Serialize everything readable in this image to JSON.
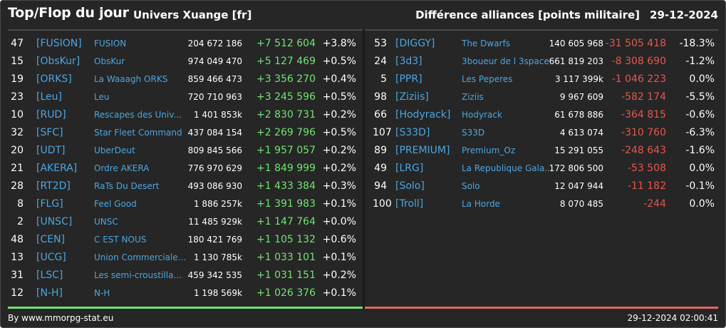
{
  "header": {
    "title": "Top/Flop du jour",
    "univers": "Univers Xuange [fr]",
    "subtitle": "Différence alliances [points militaire]",
    "date": "29-12-2024"
  },
  "colors": {
    "positive": "#72e472",
    "negative": "#e4574c",
    "link": "#4ca6e0",
    "background": "#262626"
  },
  "top": [
    {
      "rank": "47",
      "tag": "[FUSION]",
      "name": "FUSION",
      "points": "204 672 186",
      "diff": "+7 512 604",
      "pct": "+3.8%"
    },
    {
      "rank": "15",
      "tag": "[ObsKur]",
      "name": "ObsKur",
      "points": "974 049 470",
      "diff": "+5 127 469",
      "pct": "+0.5%"
    },
    {
      "rank": "19",
      "tag": "[ORKS]",
      "name": "La Waaagh ORKS",
      "points": "859 466 473",
      "diff": "+3 356 270",
      "pct": "+0.4%"
    },
    {
      "rank": "23",
      "tag": "[Leu]",
      "name": "Leu",
      "points": "720 710 963",
      "diff": "+3 245 596",
      "pct": "+0.5%"
    },
    {
      "rank": "10",
      "tag": "[RUD]",
      "name": "Rescapes des Univ...",
      "points": "1 401 853k",
      "diff": "+2 830 731",
      "pct": "+0.2%"
    },
    {
      "rank": "32",
      "tag": "[SFC]",
      "name": "Star Fleet Command",
      "points": "437 084 154",
      "diff": "+2 269 796",
      "pct": "+0.5%"
    },
    {
      "rank": "20",
      "tag": "[UDT]",
      "name": "UberDeut",
      "points": "809 845 566",
      "diff": "+1 957 057",
      "pct": "+0.2%"
    },
    {
      "rank": "21",
      "tag": "[AKERA]",
      "name": "Ordre AKERA",
      "points": "776 970 629",
      "diff": "+1 849 999",
      "pct": "+0.2%"
    },
    {
      "rank": "28",
      "tag": "[RT2D]",
      "name": "RaTs Du Desert",
      "points": "493 086 930",
      "diff": "+1 433 384",
      "pct": "+0.3%"
    },
    {
      "rank": "8",
      "tag": "[FLG]",
      "name": "Feel Good",
      "points": "1 886 257k",
      "diff": "+1 391 983",
      "pct": "+0.1%"
    },
    {
      "rank": "2",
      "tag": "[UNSC]",
      "name": "UNSC",
      "points": "11 485 929k",
      "diff": "+1 147 764",
      "pct": "+0.0%"
    },
    {
      "rank": "48",
      "tag": "[CEN]",
      "name": "C EST NOUS",
      "points": "180 421 769",
      "diff": "+1 105 132",
      "pct": "+0.6%"
    },
    {
      "rank": "13",
      "tag": "[UCG]",
      "name": "Union Commerciale...",
      "points": "1 130 785k",
      "diff": "+1 033 101",
      "pct": "+0.1%"
    },
    {
      "rank": "31",
      "tag": "[LSC]",
      "name": "Les semi-croustilla...",
      "points": "459 342 535",
      "diff": "+1 031 151",
      "pct": "+0.2%"
    },
    {
      "rank": "12",
      "tag": "[N-H]",
      "name": "N-H",
      "points": "1 198 569k",
      "diff": "+1 026 376",
      "pct": "+0.1%"
    }
  ],
  "flop": [
    {
      "rank": "53",
      "tag": "[DIGGY]",
      "name": "The Dwarfs",
      "points": "140 605 968",
      "diff": "-31 505 418",
      "pct": "-18.3%"
    },
    {
      "rank": "24",
      "tag": "[3d3]",
      "name": "3boueur de l 3space",
      "points": "661 819 203",
      "diff": "-8 308 690",
      "pct": "-1.2%"
    },
    {
      "rank": "5",
      "tag": "[PPR]",
      "name": "Les Peperes",
      "points": "3 117 399k",
      "diff": "-1 046 223",
      "pct": "0.0%"
    },
    {
      "rank": "98",
      "tag": "[Ziziis]",
      "name": "Ziziis",
      "points": "9 967 609",
      "diff": "-582 174",
      "pct": "-5.5%"
    },
    {
      "rank": "66",
      "tag": "[Hodyrack]",
      "name": "Hodyrack",
      "points": "61 678 886",
      "diff": "-364 815",
      "pct": "-0.6%"
    },
    {
      "rank": "107",
      "tag": "[S33D]",
      "name": "S33D",
      "points": "4 613 074",
      "diff": "-310 760",
      "pct": "-6.3%"
    },
    {
      "rank": "89",
      "tag": "[PREMIUM]",
      "name": "Premium_Oz",
      "points": "15 291 055",
      "diff": "-248 643",
      "pct": "-1.6%"
    },
    {
      "rank": "49",
      "tag": "[LRG]",
      "name": "La Republique Gala...",
      "points": "172 806 500",
      "diff": "-53 508",
      "pct": "0.0%"
    },
    {
      "rank": "94",
      "tag": "[Solo]",
      "name": "Solo",
      "points": "12 047 944",
      "diff": "-11 182",
      "pct": "-0.1%"
    },
    {
      "rank": "100",
      "tag": "[Troll]",
      "name": "La Horde",
      "points": "8 070 485",
      "diff": "-244",
      "pct": "0.0%"
    }
  ],
  "footer": {
    "credit": "By www.mmorpg-stat.eu",
    "timestamp": "29-12-2024 02:00:41"
  }
}
